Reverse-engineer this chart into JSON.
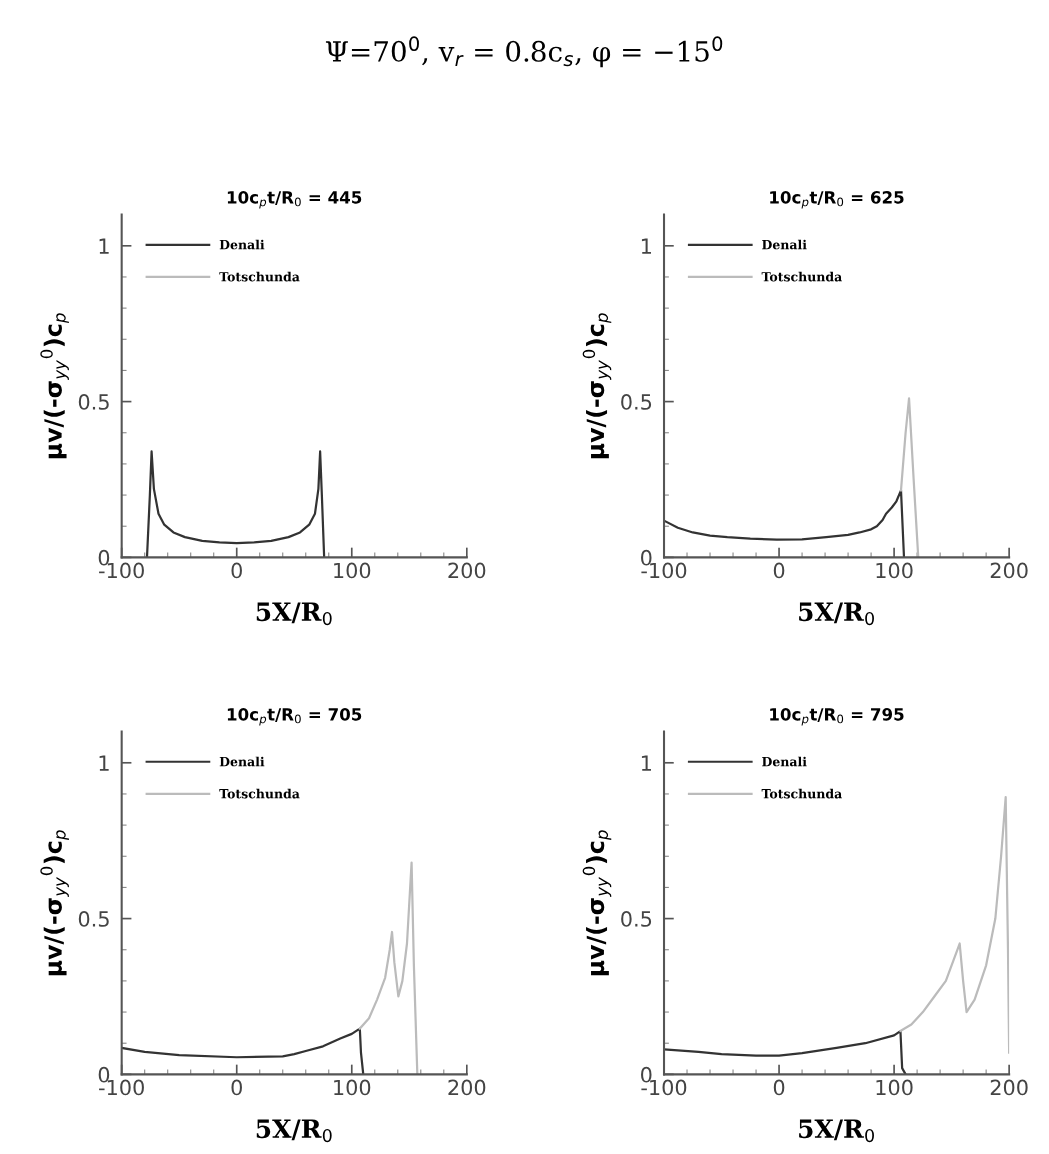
{
  "chart_data": [
    {
      "type": "line",
      "annotations": [
        "Ψ=70$^{0}$, v$_{r}$ = 0.8c$_{s}$, φ = −15$^{0}$"
      ],
      "title": "10c$_{p}$t/R$_{0}$ = 445",
      "xlabel": "5X/R$_{0}$",
      "ylabel": "μv/(-σ$_{yy}$$^{0}$)c$_{p}$",
      "xlim": [
        -100,
        200
      ],
      "ylim": [
        0,
        1.1
      ],
      "xticks": [
        -100,
        {
          "value": -80,
          "label": null
        },
        {
          "value": -60,
          "label": null
        },
        {
          "value": -40,
          "label": null
        },
        {
          "value": -20,
          "label": null
        },
        0,
        {
          "value": 20,
          "label": null
        },
        {
          "value": 40,
          "label": null
        },
        {
          "value": 60,
          "label": null
        },
        {
          "value": 80,
          "label": null
        },
        100,
        {
          "value": 120,
          "label": null
        },
        {
          "value": 140,
          "label": null
        },
        {
          "value": 160,
          "label": null
        },
        {
          "value": 180,
          "label": null
        },
        200
      ],
      "yticks": [
        0,
        {
          "value": 0.1,
          "label": null
        },
        {
          "value": 0.2,
          "label": null
        },
        {
          "value": 0.3,
          "label": null
        },
        {
          "value": 0.4,
          "label": null
        },
        0.5,
        {
          "value": 0.6,
          "label": null
        },
        {
          "value": 0.7,
          "label": null
        },
        {
          "value": 0.8,
          "label": null
        },
        {
          "value": 0.9,
          "label": null
        },
        1
      ],
      "legend": "top left",
      "grid": false,
      "line_style": "solid",
      "marker": "none",
      "series": [
        {
          "name": "Denali",
          "color": "#333333",
          "x": [
            -78,
            -75.5,
            -74,
            -72,
            -68,
            -63,
            -55,
            -45,
            -30,
            -15,
            0,
            15,
            30,
            45,
            55,
            63,
            68,
            71,
            72.5,
            74,
            76
          ],
          "values": [
            0,
            0.2,
            0.34,
            0.22,
            0.14,
            0.105,
            0.08,
            0.065,
            0.053,
            0.048,
            0.046,
            0.048,
            0.053,
            0.065,
            0.08,
            0.105,
            0.14,
            0.22,
            0.34,
            0.2,
            0
          ]
        },
        {
          "name": "Totschunda",
          "color": "#bbbbbb"
        }
      ]
    },
    {
      "type": "line",
      "title": "10c$_{p}$t/R$_{0}$ = 625",
      "xlabel": "5X/R$_{0}$",
      "ylabel": "μv/(-σ$_{yy}$$^{0}$)c$_{p}$",
      "xlim": [
        -100,
        200
      ],
      "ylim": [
        0,
        1.1
      ],
      "xticks": [
        -100,
        {
          "value": -80,
          "label": null
        },
        {
          "value": -60,
          "label": null
        },
        {
          "value": -40,
          "label": null
        },
        {
          "value": -20,
          "label": null
        },
        0,
        {
          "value": 20,
          "label": null
        },
        {
          "value": 40,
          "label": null
        },
        {
          "value": 60,
          "label": null
        },
        {
          "value": 80,
          "label": null
        },
        100,
        {
          "value": 120,
          "label": null
        },
        {
          "value": 140,
          "label": null
        },
        {
          "value": 160,
          "label": null
        },
        {
          "value": 180,
          "label": null
        },
        200
      ],
      "yticks": [
        0,
        {
          "value": 0.1,
          "label": null
        },
        {
          "value": 0.2,
          "label": null
        },
        {
          "value": 0.3,
          "label": null
        },
        {
          "value": 0.4,
          "label": null
        },
        0.5,
        {
          "value": 0.6,
          "label": null
        },
        {
          "value": 0.7,
          "label": null
        },
        {
          "value": 0.8,
          "label": null
        },
        {
          "value": 0.9,
          "label": null
        },
        1
      ],
      "legend": "top left",
      "grid": false,
      "line_style": "solid",
      "marker": "none",
      "series": [
        {
          "name": "Denali",
          "color": "#333333",
          "x": [
            -100,
            -88,
            -75,
            -60,
            -45,
            -25,
            -2,
            20,
            41,
            60,
            70,
            80,
            85,
            90,
            93,
            98,
            102,
            106,
            108.6
          ],
          "values": [
            0.118,
            0.095,
            0.08,
            0.07,
            0.065,
            0.06,
            0.057,
            0.058,
            0.065,
            0.072,
            0.08,
            0.09,
            0.1,
            0.12,
            0.14,
            0.16,
            0.18,
            0.215,
            0
          ]
        },
        {
          "name": "Totschunda",
          "color": "#bbbbbb",
          "x": [
            106,
            110,
            113,
            117,
            121
          ],
          "values": [
            0.215,
            0.4,
            0.51,
            0.25,
            0
          ]
        }
      ]
    },
    {
      "type": "line",
      "title": "10c$_{p}$t/R$_{0}$ = 705",
      "xlabel": "5X/R$_{0}$",
      "ylabel": "μv/(-σ$_{yy}$$^{0}$)c$_{p}$",
      "xlim": [
        -100,
        200
      ],
      "ylim": [
        0,
        1.1
      ],
      "xticks": [
        -100,
        {
          "value": -80,
          "label": null
        },
        {
          "value": -60,
          "label": null
        },
        {
          "value": -40,
          "label": null
        },
        {
          "value": -20,
          "label": null
        },
        0,
        {
          "value": 20,
          "label": null
        },
        {
          "value": 40,
          "label": null
        },
        {
          "value": 60,
          "label": null
        },
        {
          "value": 80,
          "label": null
        },
        100,
        {
          "value": 120,
          "label": null
        },
        {
          "value": 140,
          "label": null
        },
        {
          "value": 160,
          "label": null
        },
        {
          "value": 180,
          "label": null
        },
        200
      ],
      "yticks": [
        0,
        {
          "value": 0.1,
          "label": null
        },
        {
          "value": 0.2,
          "label": null
        },
        {
          "value": 0.3,
          "label": null
        },
        {
          "value": 0.4,
          "label": null
        },
        0.5,
        {
          "value": 0.6,
          "label": null
        },
        {
          "value": 0.7,
          "label": null
        },
        {
          "value": 0.8,
          "label": null
        },
        {
          "value": 0.9,
          "label": null
        },
        1
      ],
      "legend": "top left",
      "grid": false,
      "line_style": "solid",
      "marker": "none",
      "series": [
        {
          "name": "Denali",
          "color": "#333333",
          "x": [
            -100,
            -80,
            -50,
            0,
            40,
            50,
            60,
            75,
            90,
            100,
            107,
            108,
            110
          ],
          "values": [
            0.085,
            0.072,
            0.062,
            0.055,
            0.058,
            0.065,
            0.075,
            0.09,
            0.115,
            0.13,
            0.147,
            0.07,
            0
          ]
        },
        {
          "name": "Totschunda",
          "color": "#bbbbbb",
          "x": [
            107,
            115,
            122,
            129,
            133,
            135,
            137,
            140.5,
            144,
            148,
            152,
            154,
            157
          ],
          "values": [
            0.147,
            0.18,
            0.24,
            0.31,
            0.4,
            0.457,
            0.36,
            0.25,
            0.3,
            0.42,
            0.68,
            0.35,
            0
          ]
        }
      ]
    },
    {
      "type": "line",
      "title": "10c$_{p}$t/R$_{0}$ = 795",
      "xlabel": "5X/R$_{0}$",
      "ylabel": "μv/(-σ$_{yy}$$^{0}$)c$_{p}$",
      "xlim": [
        -100,
        200
      ],
      "ylim": [
        0,
        1.1
      ],
      "xticks": [
        -100,
        {
          "value": -80,
          "label": null
        },
        {
          "value": -60,
          "label": null
        },
        {
          "value": -40,
          "label": null
        },
        {
          "value": -20,
          "label": null
        },
        0,
        {
          "value": 20,
          "label": null
        },
        {
          "value": 40,
          "label": null
        },
        {
          "value": 60,
          "label": null
        },
        {
          "value": 80,
          "label": null
        },
        100,
        {
          "value": 120,
          "label": null
        },
        {
          "value": 140,
          "label": null
        },
        {
          "value": 160,
          "label": null
        },
        {
          "value": 180,
          "label": null
        },
        200
      ],
      "yticks": [
        0,
        {
          "value": 0.1,
          "label": null
        },
        {
          "value": 0.2,
          "label": null
        },
        {
          "value": 0.3,
          "label": null
        },
        {
          "value": 0.4,
          "label": null
        },
        0.5,
        {
          "value": 0.6,
          "label": null
        },
        {
          "value": 0.7,
          "label": null
        },
        {
          "value": 0.8,
          "label": null
        },
        {
          "value": 0.9,
          "label": null
        },
        1
      ],
      "legend": "top left",
      "grid": false,
      "line_style": "solid",
      "marker": "none",
      "series": [
        {
          "name": "Denali",
          "color": "#333333",
          "x": [
            -100,
            -70,
            -50,
            -20,
            0,
            20,
            50,
            75,
            100,
            105.5,
            107,
            110
          ],
          "values": [
            0.08,
            0.072,
            0.065,
            0.06,
            0.06,
            0.068,
            0.085,
            0.1,
            0.125,
            0.139,
            0.02,
            0
          ]
        },
        {
          "name": "Totschunda",
          "color": "#bbbbbb",
          "x": [
            105.5,
            115,
            125,
            135,
            145,
            152,
            157,
            160,
            163,
            170,
            180,
            188,
            193,
            197,
            199,
            200
          ],
          "values": [
            0.139,
            0.16,
            0.2,
            0.25,
            0.3,
            0.37,
            0.42,
            0.3,
            0.2,
            0.24,
            0.35,
            0.5,
            0.7,
            0.89,
            0.4,
            0.07
          ]
        }
      ]
    }
  ]
}
